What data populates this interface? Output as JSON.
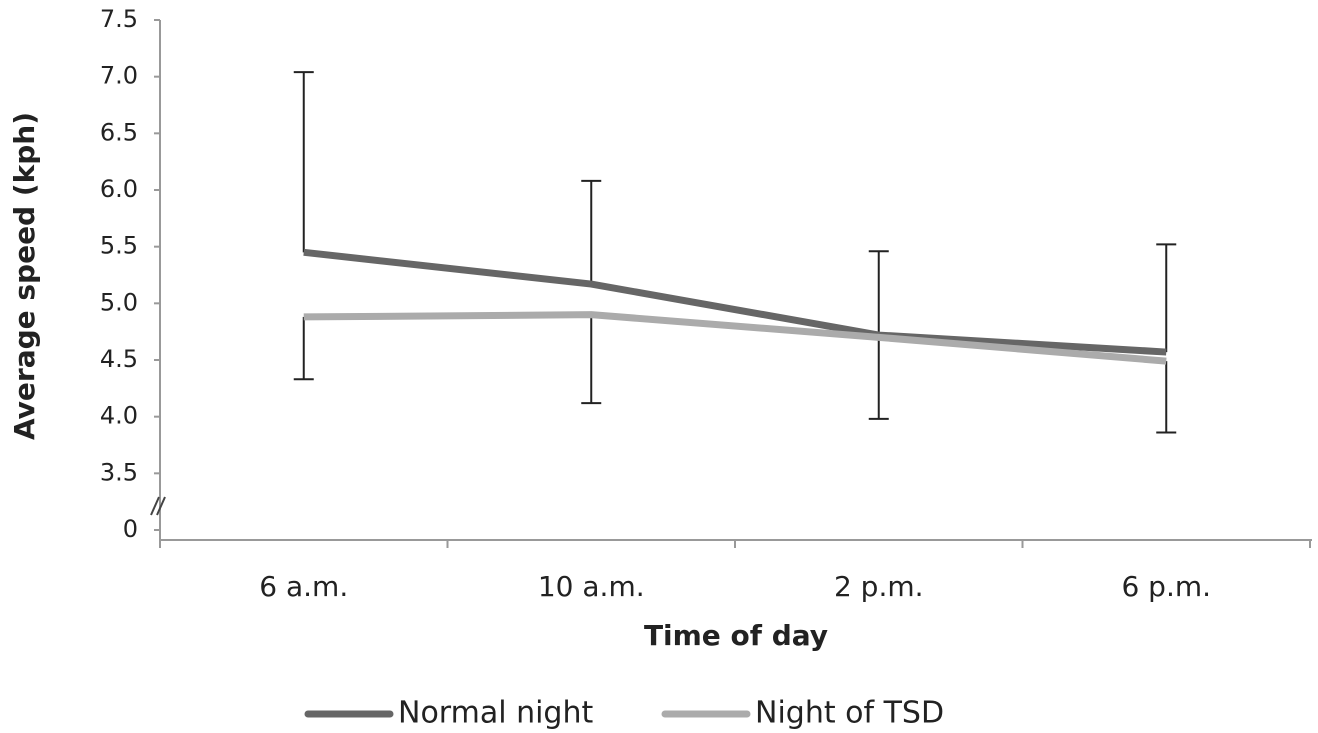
{
  "chart_data": {
    "type": "line",
    "x_label": "Time of day",
    "y_label": "Average speed (kph)",
    "categories": [
      "6 a.m.",
      "10 a.m.",
      "2 p.m.",
      "6 p.m."
    ],
    "series": [
      {
        "name": "Normal night",
        "color": "#666666",
        "values": [
          5.45,
          5.17,
          4.72,
          4.57
        ],
        "errors": [
          1.59,
          0.91,
          0.74,
          0.95
        ],
        "error_side": "up"
      },
      {
        "name": "Night of TSD",
        "color": "#ababab",
        "values": [
          4.88,
          4.9,
          4.7,
          4.49
        ],
        "errors": [
          0.55,
          0.78,
          0.72,
          0.63
        ],
        "error_side": "down"
      }
    ],
    "ylim": [
      3,
      7.5
    ],
    "yticks": [
      0,
      3.5,
      {
        "value": 4,
        "label": "4.0"
      },
      4.5,
      {
        "value": 5,
        "label": "5.0"
      },
      5.5,
      {
        "value": 6,
        "label": "6.0"
      },
      6.5,
      {
        "value": 7,
        "label": "7.0"
      },
      7.5
    ],
    "axis_break": true,
    "legend": "bottom"
  }
}
